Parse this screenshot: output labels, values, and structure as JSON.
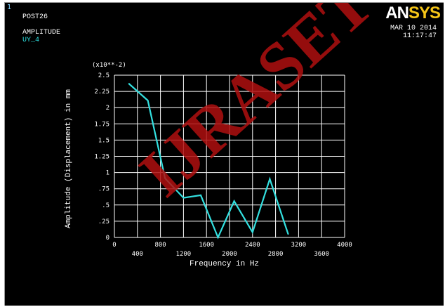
{
  "window": {
    "number": "1",
    "post_label": "POST26",
    "quantity_label": "AMPLITUDE",
    "variable_label": "UY_4",
    "date": "MAR 10 2014",
    "time": "11:17:47",
    "logo_text_a": "AN",
    "logo_text_b": "SYS"
  },
  "watermark": {
    "text": "IJRASET"
  },
  "colors": {
    "background": "#000000",
    "grid": "#ffffff",
    "series": "#33e0e0",
    "text": "#ffffff",
    "variable": "#2ee6e6",
    "watermark": "#b01010"
  },
  "chart_data": {
    "type": "line",
    "title": "",
    "xlabel": "Frequency in Hz",
    "ylabel": "Amplitude (Displacement) in mm",
    "y_scale_note": "(x10**-2)",
    "xlim": [
      0,
      4000
    ],
    "ylim": [
      0,
      2.5
    ],
    "x_ticks_top_row": [
      "0",
      "800",
      "1200",
      "1600",
      "2000",
      "2400",
      "2800",
      "3200",
      "3600",
      "4000"
    ],
    "x_ticks_bottom_row": [
      "400",
      "800",
      "1200",
      "1600",
      "2000",
      "2400",
      "2800",
      "3200",
      "3600"
    ],
    "x_tick_labels": [
      {
        "value": 0,
        "label": "0",
        "row": 0
      },
      {
        "value": 400,
        "label": "400",
        "row": 1
      },
      {
        "value": 800,
        "label": "800",
        "row": 0
      },
      {
        "value": 1200,
        "label": "1200",
        "row": 1
      },
      {
        "value": 1600,
        "label": "1600",
        "row": 0
      },
      {
        "value": 2000,
        "label": "2000",
        "row": 1
      },
      {
        "value": 2400,
        "label": "2400",
        "row": 0
      },
      {
        "value": 2800,
        "label": "2800",
        "row": 1
      },
      {
        "value": 3200,
        "label": "3200",
        "row": 0
      },
      {
        "value": 3600,
        "label": "3600",
        "row": 1
      },
      {
        "value": 4000,
        "label": "4000",
        "row": 0
      }
    ],
    "y_tick_labels": [
      {
        "value": 0,
        "label": "0"
      },
      {
        "value": 0.25,
        "label": ".25"
      },
      {
        "value": 0.5,
        "label": ".5"
      },
      {
        "value": 0.75,
        "label": ".75"
      },
      {
        "value": 1.0,
        "label": "1"
      },
      {
        "value": 1.25,
        "label": "1.25"
      },
      {
        "value": 1.5,
        "label": "1.5"
      },
      {
        "value": 1.75,
        "label": "1.75"
      },
      {
        "value": 2.0,
        "label": "2"
      },
      {
        "value": 2.25,
        "label": "2.25"
      },
      {
        "value": 2.5,
        "label": "2.5"
      }
    ],
    "grid": true,
    "series": [
      {
        "x": [
          250,
          580,
          880,
          1200,
          1500,
          1800,
          2080,
          2400,
          2700,
          3020
        ],
        "y": [
          2.37,
          2.11,
          0.91,
          0.61,
          0.65,
          0.0,
          0.56,
          0.08,
          0.9,
          0.05
        ]
      }
    ]
  }
}
